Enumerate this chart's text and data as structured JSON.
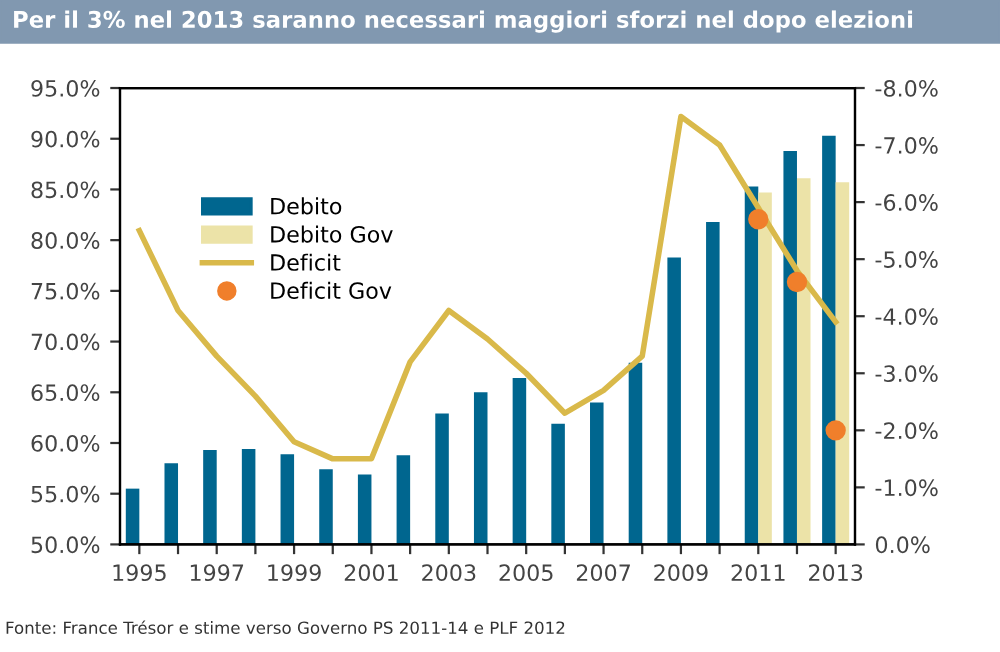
{
  "chart_data": {
    "type": "bar",
    "title": "Per il 3% nel 2013 saranno necessari maggiori sforzi nel dopo elezioni",
    "annotations": [
      "Fonte: France Trésor e stime verso Governo PS 2011-14 e PLF 2012"
    ],
    "categories": [
      "1995",
      null,
      "1997",
      null,
      "1999",
      null,
      "2001",
      null,
      "2003",
      null,
      "2005",
      null,
      "2007",
      null,
      "2009",
      null,
      "2011",
      null,
      "2013"
    ],
    "series": [
      {
        "name": "Debito",
        "color": "#00668f",
        "values": [
          55.5,
          58.0,
          59.3,
          59.4,
          58.9,
          57.4,
          56.9,
          58.8,
          62.9,
          65.0,
          66.4,
          61.9,
          64.0,
          67.9,
          78.3,
          81.8,
          85.3,
          88.8,
          90.3
        ]
      },
      {
        "name": "Debito Gov",
        "color": "#ece3a8",
        "values": [
          null,
          null,
          null,
          null,
          null,
          null,
          null,
          null,
          null,
          null,
          null,
          null,
          null,
          null,
          null,
          null,
          84.7,
          86.1,
          85.7
        ]
      },
      {
        "name": "Deficit",
        "type": "line",
        "axis": "y2",
        "color": "#d9b94a",
        "marker": "none",
        "line_style": "solid",
        "values": [
          -5.5,
          -4.1,
          -3.3,
          -2.6,
          -1.8,
          -1.5,
          -1.5,
          -3.2,
          -4.1,
          -3.6,
          -3.0,
          -2.3,
          -2.7,
          -3.3,
          -7.5,
          -7.0,
          -5.9,
          -4.8,
          -3.9
        ]
      },
      {
        "name": "Deficit Gov",
        "type": "scatter",
        "axis": "y2",
        "color": "#f07f2b",
        "marker": "circle",
        "values": [
          null,
          null,
          null,
          null,
          null,
          null,
          null,
          null,
          null,
          null,
          null,
          null,
          null,
          null,
          null,
          null,
          -5.7,
          -4.6,
          -2.0
        ]
      }
    ],
    "ylim": [
      50,
      95
    ],
    "yticks": [
      {
        "value": 50,
        "label": "50.0%"
      },
      {
        "value": 55,
        "label": "55.0%"
      },
      {
        "value": 60,
        "label": "60.0%"
      },
      {
        "value": 65,
        "label": "65.0%"
      },
      {
        "value": 70,
        "label": "70.0%"
      },
      {
        "value": 75,
        "label": "75.0%"
      },
      {
        "value": 80,
        "label": "80.0%"
      },
      {
        "value": 85,
        "label": "85.0%"
      },
      {
        "value": 90,
        "label": "90.0%"
      },
      {
        "value": 95,
        "label": "95.0%"
      }
    ],
    "y2lim": [
      0,
      -8
    ],
    "y2ticks": [
      {
        "value": 0,
        "label": "0.0%"
      },
      {
        "value": -1,
        "label": "-1.0%"
      },
      {
        "value": -2,
        "label": "-2.0%"
      },
      {
        "value": -3,
        "label": "-3.0%"
      },
      {
        "value": -4,
        "label": "-4.0%"
      },
      {
        "value": -5,
        "label": "-5.0%"
      },
      {
        "value": -6,
        "label": "-6.0%"
      },
      {
        "value": -7,
        "label": "-7.0%"
      },
      {
        "value": -8,
        "label": "-8.0%"
      }
    ],
    "grid": false,
    "legend": "top left"
  }
}
